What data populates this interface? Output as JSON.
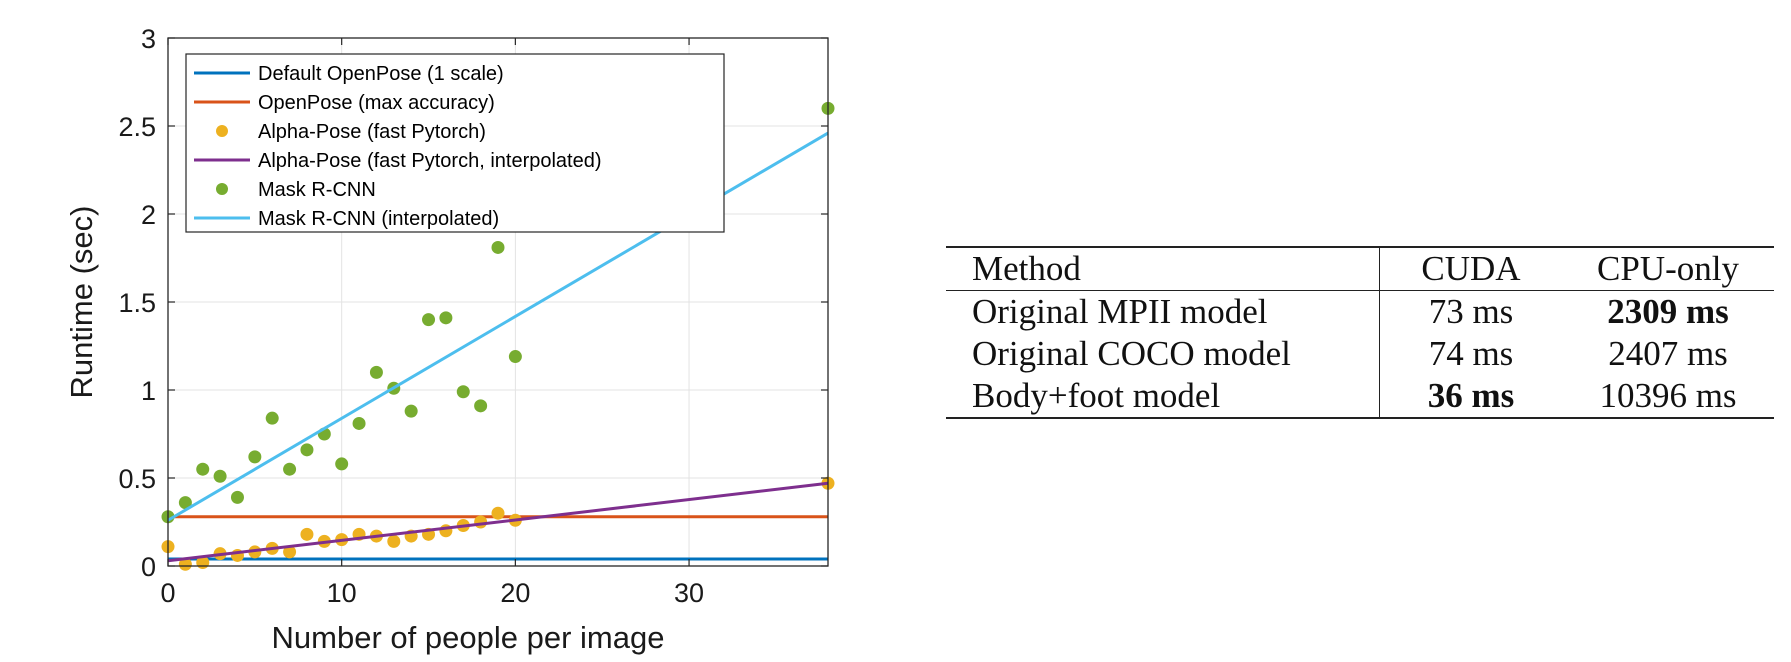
{
  "chart_data": {
    "type": "scatter",
    "xlabel": "Number of people per image",
    "ylabel": "Runtime (sec)",
    "xlim": [
      0,
      38
    ],
    "ylim": [
      0,
      3
    ],
    "x_ticks": [
      "0",
      "10",
      "20",
      "30"
    ],
    "x_tick_values": [
      0,
      10,
      20,
      30
    ],
    "y_ticks": [
      "0",
      "0.5",
      "1",
      "1.5",
      "2",
      "2.5",
      "3"
    ],
    "y_tick_values": [
      0,
      0.5,
      1,
      1.5,
      2,
      2.5,
      3
    ],
    "grid": true,
    "legend_position": "top-left",
    "series": [
      {
        "name": "Default OpenPose (1 scale)",
        "kind": "line",
        "color": "#0072bd",
        "x": [
          0,
          38
        ],
        "y": [
          0.04,
          0.04
        ]
      },
      {
        "name": "OpenPose (max accuracy)",
        "kind": "line",
        "color": "#d95319",
        "x": [
          0,
          38
        ],
        "y": [
          0.28,
          0.28
        ]
      },
      {
        "name": "Alpha-Pose (fast Pytorch)",
        "kind": "scatter",
        "color": "#edb120",
        "x": [
          0,
          1,
          2,
          3,
          4,
          5,
          6,
          7,
          8,
          9,
          10,
          11,
          12,
          13,
          14,
          15,
          16,
          17,
          18,
          19,
          20,
          38
        ],
        "y": [
          0.11,
          0.01,
          0.02,
          0.07,
          0.06,
          0.08,
          0.1,
          0.08,
          0.18,
          0.14,
          0.15,
          0.18,
          0.17,
          0.14,
          0.17,
          0.18,
          0.2,
          0.23,
          0.25,
          0.3,
          0.26,
          0.47
        ]
      },
      {
        "name": "Alpha-Pose (fast Pytorch, interpolated)",
        "kind": "line",
        "color": "#7e2f8e",
        "x": [
          0,
          38
        ],
        "y": [
          0.03,
          0.47
        ]
      },
      {
        "name": "Mask R-CNN",
        "kind": "scatter",
        "color": "#77ac30",
        "x": [
          0,
          1,
          2,
          3,
          4,
          5,
          6,
          7,
          8,
          9,
          10,
          11,
          12,
          13,
          14,
          15,
          16,
          17,
          18,
          19,
          20,
          38
        ],
        "y": [
          0.28,
          0.36,
          0.55,
          0.51,
          0.39,
          0.62,
          0.84,
          0.55,
          0.66,
          0.75,
          0.58,
          0.81,
          1.1,
          1.01,
          0.88,
          1.4,
          1.41,
          0.99,
          0.91,
          1.81,
          1.19,
          2.6
        ]
      },
      {
        "name": "Mask R-CNN (interpolated)",
        "kind": "line",
        "color": "#4dbeee",
        "x": [
          0,
          38
        ],
        "y": [
          0.26,
          2.46
        ]
      }
    ]
  },
  "table": {
    "headers": [
      "Method",
      "CUDA",
      "CPU-only"
    ],
    "rows": [
      {
        "method": "Original MPII model",
        "cuda": "73 ms",
        "cpu": "2309 ms",
        "bold": "cpu"
      },
      {
        "method": "Original COCO model",
        "cuda": "74 ms",
        "cpu": "2407 ms",
        "bold": ""
      },
      {
        "method": "Body+foot model",
        "cuda": "36 ms",
        "cpu": "10396 ms",
        "bold": "cuda"
      }
    ]
  }
}
